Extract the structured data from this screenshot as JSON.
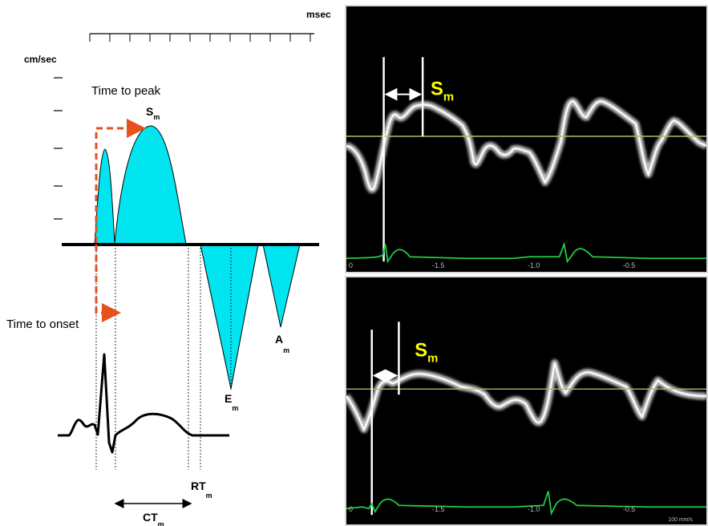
{
  "schematic": {
    "x_unit": "msec",
    "y_unit": "cm/sec",
    "time_to_peak_label": "Time to peak",
    "time_to_onset_label": "Time to onset",
    "waves": [
      {
        "name": "S",
        "sub": "m"
      },
      {
        "name": "E",
        "sub": "m"
      },
      {
        "name": "A",
        "sub": "m"
      }
    ],
    "rt_label": {
      "name": "RT",
      "sub": "m"
    },
    "ct_label": {
      "name": "CT",
      "sub": "m"
    }
  },
  "doppler_top": {
    "peak_label": {
      "name": "S",
      "sub": "m"
    },
    "time_ticks": [
      "-1.5",
      "-1.0",
      "-0.5"
    ],
    "origin_label": "0"
  },
  "doppler_bottom": {
    "peak_label": {
      "name": "S",
      "sub": "m"
    },
    "time_ticks": [
      "-1.5",
      "-1.0",
      "-0.5"
    ],
    "origin_label": "0",
    "sweep_label": "100 mm/s"
  },
  "colors": {
    "wave_fill": "#00e5f0",
    "arrow_dashed": "#e8501e",
    "doppler_label": "#ffff00",
    "ecg_trace": "#22cc44",
    "baseline": "#b5b56a"
  }
}
